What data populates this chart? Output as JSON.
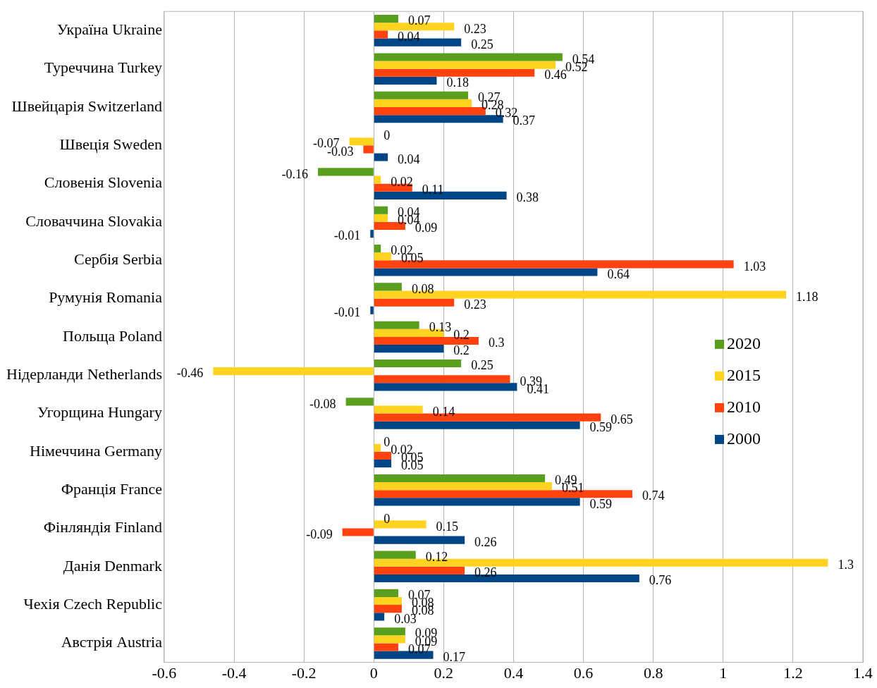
{
  "chart_data": {
    "type": "bar",
    "orientation": "horizontal",
    "categories": [
      "Україна Ukraine",
      "Туреччина Turkey",
      "Швейцарія Switzerland",
      "Швеція Sweden",
      "Словенія Slovenia",
      "Словаччина Slovakia",
      "Сербія Serbia",
      "Румунія Romania",
      "Польща Poland",
      "Нідерланди Netherlands",
      "Угорщина Hungary",
      "Німеччина Germany",
      "Франція France",
      "Фінляндія Finland",
      "Данія Denmark",
      "Чехія Czech Republic",
      "Австрія Austria"
    ],
    "series": [
      {
        "name": "2020",
        "color": "#5a9e1e",
        "values": [
          0.07,
          0.54,
          0.27,
          0,
          -0.16,
          0.04,
          0.02,
          0.08,
          0.13,
          0.25,
          -0.08,
          0,
          0.49,
          0,
          0.12,
          0.07,
          0.09
        ]
      },
      {
        "name": "2015",
        "color": "#ffd320",
        "values": [
          0.23,
          0.52,
          0.28,
          -0.07,
          0.02,
          0.04,
          0.05,
          1.18,
          0.2,
          -0.46,
          0.14,
          0.02,
          0.51,
          0.15,
          1.3,
          0.08,
          0.09
        ]
      },
      {
        "name": "2010",
        "color": "#ff420e",
        "values": [
          0.04,
          0.46,
          0.32,
          -0.03,
          0.11,
          0.09,
          1.03,
          0.23,
          0.3,
          0.39,
          0.65,
          0.05,
          0.74,
          -0.09,
          0.26,
          0.08,
          0.07
        ]
      },
      {
        "name": "2000",
        "color": "#004586",
        "values": [
          0.25,
          0.18,
          0.37,
          0.04,
          0.38,
          -0.01,
          0.64,
          -0.01,
          0.2,
          0.41,
          0.59,
          0.05,
          0.59,
          0.26,
          0.76,
          0.03,
          0.17
        ]
      }
    ],
    "xlim": [
      -0.6,
      1.4
    ],
    "xticks": [
      -0.6,
      -0.4,
      -0.2,
      0,
      0.2,
      0.4,
      0.6,
      0.8,
      1,
      1.2,
      1.4
    ],
    "grid": "x",
    "legend": "right",
    "data_labels": true
  }
}
